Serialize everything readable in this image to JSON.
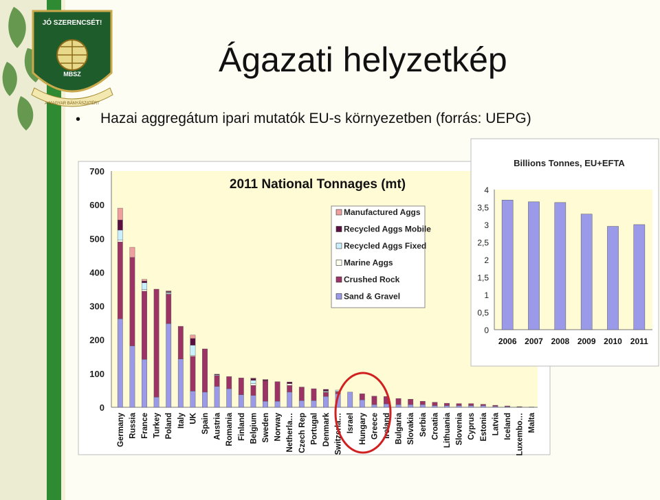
{
  "slide": {
    "title": "Ágazati helyzetkép",
    "bullet": "Hazai aggregátum ipari mutatók EU-s környezetben (forrás: UEPG)",
    "logo_text": "JÓ SZERENCSÉT!",
    "logo_abbr": "MBSZ",
    "logo_ribbon": "A MAGYAR BÁNYÁSZATÉRT",
    "colors": {
      "green_band": "#2f8a34",
      "plot_bg": "#fffbd5",
      "highlight": "#d02020"
    }
  },
  "chart_data": [
    {
      "type": "bar",
      "stacked": true,
      "title": "2011 National Tonnages (mt)",
      "ylim": [
        0,
        700
      ],
      "yticks": [
        0,
        100,
        200,
        300,
        400,
        500,
        600,
        700
      ],
      "categories": [
        "Germany",
        "Russia",
        "France",
        "Turkey",
        "Poland",
        "Italy",
        "UK",
        "Spain",
        "Austria",
        "Romania",
        "Finland",
        "Belgium",
        "Sweden",
        "Norway",
        "Netherla…",
        "Czech Rep",
        "Portugal",
        "Denmark",
        "Switzerla…",
        "Israel",
        "Hungary",
        "Greece",
        "Ireland",
        "Bulgaria",
        "Slovakia",
        "Serbia",
        "Croatia",
        "Lithuania",
        "Slovenia",
        "Cyprus",
        "Estonia",
        "Latvia",
        "Iceland",
        "Luxembo…",
        "Malta"
      ],
      "series": [
        {
          "name": "Sand & Gravel",
          "color": "#9a9ae8",
          "values": [
            262,
            182,
            142,
            30,
            248,
            143,
            48,
            45,
            62,
            55,
            37,
            35,
            18,
            18,
            45,
            20,
            20,
            32,
            40,
            45,
            22,
            8,
            10,
            8,
            8,
            8,
            5,
            5,
            5,
            5,
            5,
            3,
            2,
            1,
            1
          ]
        },
        {
          "name": "Crushed Rock",
          "color": "#9c3365",
          "values": [
            228,
            262,
            202,
            320,
            87,
            97,
            103,
            128,
            32,
            36,
            50,
            30,
            60,
            58,
            20,
            40,
            35,
            12,
            6,
            0,
            18,
            25,
            22,
            18,
            16,
            10,
            10,
            7,
            6,
            6,
            4,
            3,
            2,
            1,
            0
          ]
        },
        {
          "name": "Marine Aggs",
          "color": "#fffff0",
          "values": [
            5,
            0,
            5,
            0,
            2,
            0,
            3,
            0,
            0,
            0,
            0,
            5,
            0,
            0,
            5,
            0,
            0,
            2,
            2,
            0,
            0,
            0,
            0,
            0,
            0,
            0,
            0,
            0,
            0,
            0,
            0,
            0,
            0,
            0,
            0
          ]
        },
        {
          "name": "Recycled Aggs Fixed",
          "color": "#c9f0ff",
          "values": [
            30,
            0,
            20,
            0,
            3,
            0,
            30,
            0,
            2,
            0,
            0,
            10,
            0,
            0,
            0,
            0,
            0,
            2,
            3,
            0,
            0,
            0,
            0,
            0,
            0,
            0,
            0,
            0,
            0,
            0,
            0,
            0,
            0,
            0,
            0
          ]
        },
        {
          "name": "Recycled Aggs Mobile",
          "color": "#5a0f40",
          "values": [
            30,
            0,
            5,
            0,
            3,
            0,
            20,
            0,
            2,
            0,
            0,
            5,
            3,
            0,
            5,
            0,
            0,
            5,
            0,
            0,
            0,
            0,
            0,
            0,
            0,
            0,
            0,
            0,
            0,
            0,
            0,
            0,
            0,
            0,
            0
          ]
        },
        {
          "name": "Manufactured Aggs",
          "color": "#f09e9e",
          "values": [
            35,
            30,
            5,
            0,
            2,
            0,
            10,
            0,
            0,
            0,
            0,
            2,
            2,
            0,
            0,
            0,
            0,
            0,
            0,
            0,
            0,
            0,
            0,
            0,
            0,
            0,
            0,
            0,
            0,
            0,
            0,
            0,
            0,
            0,
            0
          ]
        }
      ],
      "legend_order": [
        "Manufactured Aggs",
        "Recycled Aggs Mobile",
        "Recycled Aggs Fixed",
        "Marine Aggs",
        "Crushed Rock",
        "Sand & Gravel"
      ],
      "highlighted": [
        "Israel",
        "Hungary",
        "Greece"
      ]
    },
    {
      "type": "bar",
      "title": "Billions Tonnes, EU+EFTA",
      "categories": [
        "2006",
        "2007",
        "2008",
        "2009",
        "2010",
        "2011"
      ],
      "values": [
        3.7,
        3.65,
        3.63,
        3.3,
        2.95,
        3.0
      ],
      "ylim": [
        0,
        4
      ],
      "yticks": [
        "0",
        "0,5",
        "1",
        "1,5",
        "2",
        "2,5",
        "3",
        "3,5",
        "4"
      ],
      "color": "#9a9ae8"
    }
  ]
}
